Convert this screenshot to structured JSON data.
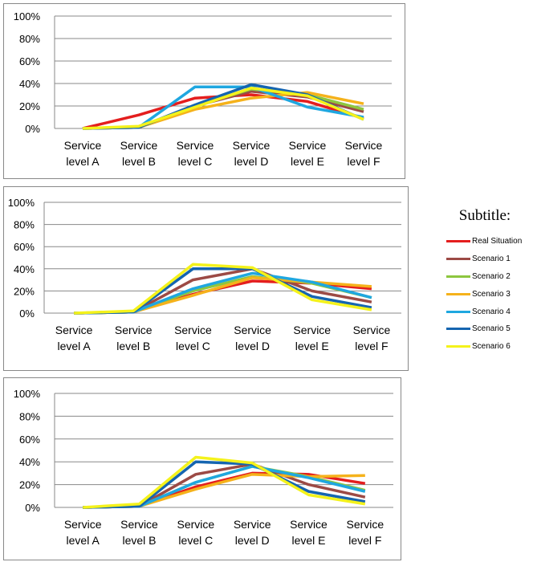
{
  "chart_data": [
    {
      "type": "line",
      "categories": [
        "Service level A",
        "Service level B",
        "Service level C",
        "Service level D",
        "Service level E",
        "Service level F"
      ],
      "ylim": [
        0,
        100
      ],
      "yticks": [
        "0%",
        "20%",
        "40%",
        "60%",
        "80%",
        "100%"
      ],
      "grid": true,
      "series": [
        {
          "name": "Real Situation",
          "values": [
            0,
            12,
            27,
            30,
            24,
            9
          ]
        },
        {
          "name": "Scenario 1",
          "values": [
            0,
            1,
            20,
            33,
            28,
            15
          ]
        },
        {
          "name": "Scenario 2",
          "values": [
            0,
            1,
            20,
            35,
            30,
            17
          ]
        },
        {
          "name": "Scenario 3",
          "values": [
            0,
            1,
            17,
            27,
            32,
            22
          ]
        },
        {
          "name": "Scenario 4",
          "values": [
            0,
            1,
            37,
            37,
            19,
            10
          ]
        },
        {
          "name": "Scenario 5",
          "values": [
            0,
            1,
            21,
            39,
            30,
            8
          ]
        },
        {
          "name": "Scenario 6",
          "values": [
            0,
            2,
            19,
            36,
            29,
            8
          ]
        }
      ]
    },
    {
      "type": "line",
      "categories": [
        "Service level A",
        "Service level B",
        "Service level C",
        "Service level D",
        "Service level E",
        "Service level F"
      ],
      "ylim": [
        0,
        100
      ],
      "yticks": [
        "0%",
        "20%",
        "40%",
        "60%",
        "80%",
        "100%"
      ],
      "grid": true,
      "series": [
        {
          "name": "Real Situation",
          "values": [
            0,
            1,
            17,
            29,
            27,
            22
          ]
        },
        {
          "name": "Scenario 1",
          "values": [
            0,
            1,
            30,
            40,
            20,
            10
          ]
        },
        {
          "name": "Scenario 2",
          "values": [
            0,
            1,
            20,
            33,
            27,
            14
          ]
        },
        {
          "name": "Scenario 3",
          "values": [
            0,
            1,
            16,
            32,
            28,
            24
          ]
        },
        {
          "name": "Scenario 4",
          "values": [
            0,
            1,
            22,
            36,
            28,
            14
          ]
        },
        {
          "name": "Scenario 5",
          "values": [
            0,
            1,
            40,
            40,
            15,
            5
          ]
        },
        {
          "name": "Scenario 6",
          "values": [
            0,
            2,
            44,
            41,
            12,
            3
          ]
        }
      ]
    },
    {
      "type": "line",
      "categories": [
        "Service level A",
        "Service level B",
        "Service level C",
        "Service level D",
        "Service level E",
        "Service level F"
      ],
      "ylim": [
        0,
        100
      ],
      "yticks": [
        "0%",
        "20%",
        "40%",
        "60%",
        "80%",
        "100%"
      ],
      "grid": true,
      "series": [
        {
          "name": "Real Situation",
          "values": [
            0,
            1,
            18,
            30,
            29,
            21
          ]
        },
        {
          "name": "Scenario 1",
          "values": [
            0,
            1,
            29,
            38,
            20,
            9
          ]
        },
        {
          "name": "Scenario 2",
          "values": [
            0,
            1,
            22,
            36,
            27,
            15
          ]
        },
        {
          "name": "Scenario 3",
          "values": [
            0,
            1,
            16,
            29,
            27,
            28
          ]
        },
        {
          "name": "Scenario 4",
          "values": [
            0,
            1,
            22,
            36,
            26,
            14
          ]
        },
        {
          "name": "Scenario 5",
          "values": [
            0,
            1,
            40,
            38,
            14,
            5
          ]
        },
        {
          "name": "Scenario 6",
          "values": [
            0,
            3,
            44,
            39,
            11,
            3
          ]
        }
      ]
    }
  ],
  "legend": {
    "title": "Subtitle:",
    "placement": "right",
    "items": [
      {
        "label": "Real Situation",
        "color": "#e41e1e"
      },
      {
        "label": "Scenario 1",
        "color": "#9c4a45"
      },
      {
        "label": "Scenario 2",
        "color": "#8dc63f"
      },
      {
        "label": "Scenario 3",
        "color": "#f5b21b"
      },
      {
        "label": "Scenario 4",
        "color": "#1fa7e0"
      },
      {
        "label": "Scenario 5",
        "color": "#1565b0"
      },
      {
        "label": "Scenario 6",
        "color": "#f4f21b"
      }
    ]
  }
}
